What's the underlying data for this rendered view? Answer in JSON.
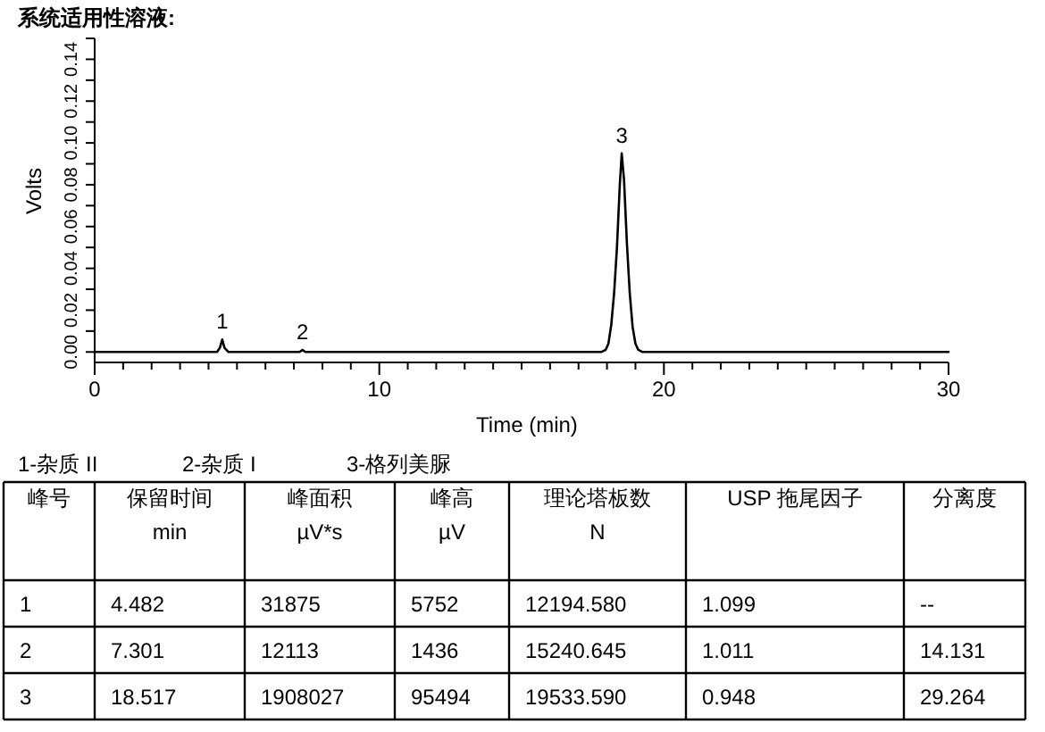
{
  "chart_data": [
    {
      "type": "line",
      "title": "系统适用性溶液:",
      "xlabel": "Time (min)",
      "ylabel": "Volts",
      "x": [
        0,
        4.3,
        4.4,
        4.482,
        4.56,
        4.7,
        7.2,
        7.301,
        7.4,
        17.8,
        17.95,
        18.05,
        18.15,
        18.25,
        18.35,
        18.45,
        18.517,
        18.6,
        18.7,
        18.8,
        18.9,
        19.0,
        19.1,
        19.25,
        30
      ],
      "values": [
        0,
        0,
        0.002,
        0.006,
        0.002,
        0,
        0,
        0.001,
        0,
        0,
        0.001,
        0.004,
        0.013,
        0.028,
        0.05,
        0.08,
        0.095,
        0.082,
        0.052,
        0.028,
        0.012,
        0.004,
        0.001,
        0,
        0
      ],
      "color": "#000000",
      "xlim": [
        0,
        30
      ],
      "xticks": [
        0,
        {
          "value": 1,
          "label": null
        },
        {
          "value": 2,
          "label": null
        },
        {
          "value": 3,
          "label": null
        },
        {
          "value": 4,
          "label": null
        },
        {
          "value": 5,
          "label": null
        },
        {
          "value": 6,
          "label": null
        },
        {
          "value": 7,
          "label": null
        },
        {
          "value": 8,
          "label": null
        },
        {
          "value": 9,
          "label": null
        },
        10,
        {
          "value": 11,
          "label": null
        },
        {
          "value": 12,
          "label": null
        },
        {
          "value": 13,
          "label": null
        },
        {
          "value": 14,
          "label": null
        },
        {
          "value": 15,
          "label": null
        },
        {
          "value": 16,
          "label": null
        },
        {
          "value": 17,
          "label": null
        },
        {
          "value": 18,
          "label": null
        },
        {
          "value": 19,
          "label": null
        },
        20,
        {
          "value": 21,
          "label": null
        },
        {
          "value": 22,
          "label": null
        },
        {
          "value": 23,
          "label": null
        },
        {
          "value": 24,
          "label": null
        },
        {
          "value": 25,
          "label": null
        },
        {
          "value": 26,
          "label": null
        },
        {
          "value": 27,
          "label": null
        },
        {
          "value": 28,
          "label": null
        },
        {
          "value": 29,
          "label": null
        },
        30
      ],
      "ylim": [
        -0.005,
        0.15
      ],
      "yticks": [
        {
          "value": 0,
          "label": "0.00"
        },
        {
          "value": 0.01,
          "label": null
        },
        {
          "value": 0.02,
          "label": "0.02"
        },
        {
          "value": 0.03,
          "label": null
        },
        {
          "value": 0.04,
          "label": "0.04"
        },
        {
          "value": 0.05,
          "label": null
        },
        {
          "value": 0.06,
          "label": "0.06"
        },
        {
          "value": 0.07,
          "label": null
        },
        {
          "value": 0.08,
          "label": "0.08"
        },
        {
          "value": 0.09,
          "label": null
        },
        {
          "value": 0.1,
          "label": "0.10"
        },
        {
          "value": 0.11,
          "label": null
        },
        {
          "value": 0.12,
          "label": "0.12"
        },
        {
          "value": 0.13,
          "label": null
        },
        {
          "value": 0.14,
          "label": "0.14"
        },
        {
          "value": 0.15,
          "label": null
        }
      ],
      "annotations": [
        {
          "text": "1",
          "x": 4.482,
          "y": 0.006
        },
        {
          "text": "2",
          "x": 7.301,
          "y": 0.001
        },
        {
          "text": "3",
          "x": 18.517,
          "y": 0.095
        },
        "1-杂质 II",
        "2-杂质 I",
        "3-格列美脲"
      ]
    },
    {
      "type": "other",
      "annotations": [
        "峰号",
        "保留时间\nmin",
        "峰面积\nµV*s",
        "峰高\nµV",
        "理论塔板数\nN",
        "USP 拖尾因子",
        "分离度",
        "1",
        "4.482",
        "31875",
        "5752",
        "12194.580",
        "1.099",
        "--",
        "2",
        "7.301",
        "12113",
        "1436",
        "15240.645",
        "1.011",
        "14.131",
        "3",
        "18.517",
        "1908027",
        "95494",
        "19533.590",
        "0.948",
        "29.264"
      ]
    }
  ]
}
